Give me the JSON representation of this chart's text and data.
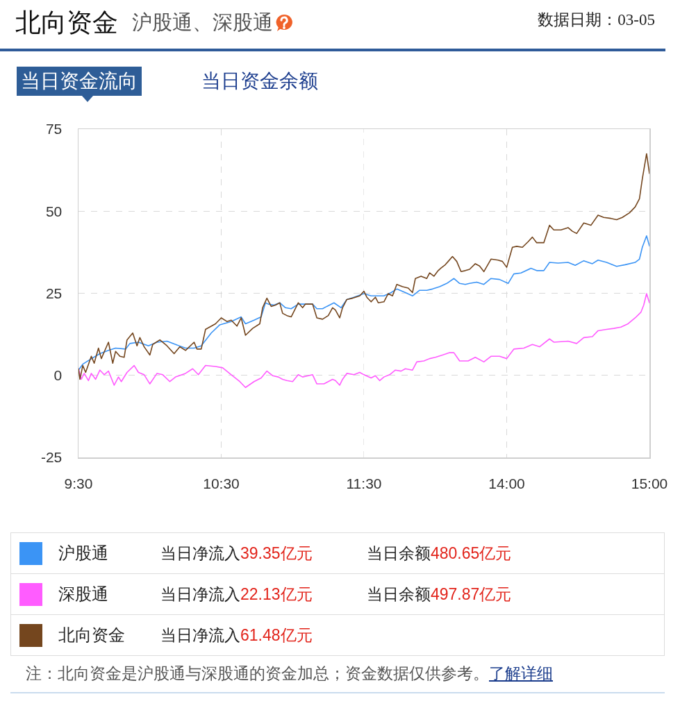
{
  "chart_data": [
    {
      "type": "line",
      "title": "北向资金",
      "subtitle": "沪股通、深股通",
      "annotations": [
        "数据日期：03-05",
        "当日资金流向",
        "当日资金余额",
        "当日净流入39.35亿元",
        "当日余额480.65亿元",
        "当日净流入22.13亿元",
        "当日余额497.87亿元",
        "当日净流入61.48亿元",
        "注：北向资金是沪股通与深股通的资金加总；资金数据仅供参考。",
        "了解详细"
      ],
      "xlim": [
        9.5,
        11.5
      ],
      "xticks": [
        {
          "value": 9.5,
          "label": "9:30"
        },
        {
          "value": 10.5,
          "label": "10:30"
        },
        {
          "value": 11.5,
          "label": "11:30"
        }
      ],
      "ylim": [
        -25,
        75
      ],
      "yticks": [
        -25,
        0,
        25,
        50,
        75
      ],
      "grid": true,
      "legend": "bottom",
      "series": [
        {
          "name": "沪股通",
          "color": "#3b94f5",
          "x": [
            9.5,
            9.53,
            9.58,
            9.65,
            9.71,
            9.76,
            9.83,
            9.86,
            9.92,
            9.99,
            10.05,
            10.12,
            10.18,
            10.25,
            10.31,
            10.36,
            10.43,
            10.49,
            10.57,
            10.64,
            10.67,
            10.73,
            10.78,
            10.81,
            10.83,
            10.87,
            10.91,
            10.95,
            10.99,
            11.04,
            11.09,
            11.14,
            11.17,
            11.21,
            11.24,
            11.29,
            11.34,
            11.38,
            11.43,
            11.5
          ],
          "values": [
            1.6,
            3.4,
            4.8,
            6.6,
            7.6,
            8.3,
            8.0,
            9.7,
            10.1,
            9.0,
            10.1,
            10.4,
            9.4,
            8.3,
            8.3,
            9.0,
            12.9,
            15.4,
            16.4,
            17.8,
            15.7,
            16.8,
            17.8,
            22.1,
            21.7,
            21.4,
            22.1,
            20.6,
            20.3,
            21.7,
            21.7,
            21.7,
            20.3,
            20.3,
            21.0,
            22.1,
            20.6,
            23.1,
            23.8,
            24.9
          ]
        },
        {
          "name": "深股通",
          "color": "#ff5cff",
          "x": [
            9.5,
            9.52,
            9.54,
            9.57,
            9.59,
            9.62,
            9.65,
            9.68,
            9.71,
            9.75,
            9.78,
            9.8,
            9.84,
            9.89,
            9.92,
            9.96,
            10.0,
            10.05,
            10.09,
            10.14,
            10.18,
            10.25,
            10.3,
            10.34,
            10.39,
            10.46,
            10.51,
            10.57,
            10.63,
            10.67,
            10.73,
            10.78,
            10.82,
            10.86,
            10.9,
            10.93,
            10.96,
            11.0,
            11.04,
            11.07,
            11.11,
            11.14,
            11.17,
            11.22,
            11.28,
            11.3,
            11.33,
            11.35,
            11.38,
            11.43,
            11.47,
            11.5
          ],
          "values": [
            2.0,
            -1.2,
            0.6,
            -1.6,
            0.6,
            -1.2,
            1.6,
            0.2,
            1.3,
            -3.0,
            -0.5,
            -1.9,
            0.9,
            3.0,
            0.9,
            0.2,
            -2.6,
            0.6,
            0.2,
            -1.9,
            -0.5,
            0.6,
            2.0,
            0.2,
            3.0,
            2.7,
            2.3,
            0.2,
            -1.9,
            -3.7,
            -1.9,
            -0.8,
            1.3,
            -0.1,
            -0.5,
            -1.2,
            -1.6,
            -1.9,
            0.2,
            -0.5,
            -0.1,
            0.2,
            -2.6,
            -2.6,
            -1.2,
            -1.6,
            -3.0,
            -1.2,
            0.6,
            0.2,
            0.9,
            0.2
          ]
        },
        {
          "name": "北向资金",
          "color": "#74461e",
          "x": [
            9.5,
            9.51,
            9.53,
            9.55,
            9.59,
            9.61,
            9.64,
            9.66,
            9.71,
            9.74,
            9.76,
            9.79,
            9.82,
            9.84,
            9.88,
            9.91,
            9.93,
            9.96,
            10.0,
            10.02,
            10.07,
            10.12,
            10.17,
            10.21,
            10.25,
            10.31,
            10.33,
            10.36,
            10.39,
            10.46,
            10.5,
            10.54,
            10.57,
            10.61,
            10.64,
            10.67,
            10.72,
            10.77,
            10.79,
            10.82,
            10.85,
            10.88,
            10.91,
            10.93,
            10.96,
            10.99,
            11.04,
            11.07,
            11.09,
            11.14,
            11.17,
            11.21,
            11.25,
            11.28,
            11.3,
            11.33,
            11.35,
            11.38,
            11.42,
            11.47,
            11.5
          ],
          "values": [
            2.0,
            -1.2,
            3.0,
            0.9,
            5.8,
            3.7,
            8.3,
            5.1,
            10.1,
            3.7,
            7.3,
            5.8,
            5.5,
            10.8,
            12.9,
            9.0,
            11.5,
            8.7,
            6.2,
            9.4,
            10.8,
            9.0,
            6.6,
            8.7,
            7.6,
            10.1,
            8.0,
            8.0,
            14.0,
            15.7,
            17.5,
            16.4,
            16.8,
            15.0,
            17.5,
            12.2,
            14.3,
            15.7,
            20.6,
            23.5,
            21.0,
            21.4,
            22.1,
            18.9,
            18.2,
            17.8,
            22.1,
            20.6,
            21.7,
            21.7,
            17.5,
            17.1,
            18.2,
            20.6,
            19.9,
            17.5,
            20.6,
            23.1,
            23.5,
            24.2,
            25.6
          ]
        }
      ]
    },
    {
      "type": "line",
      "xlim": [
        13,
        15
      ],
      "xticks": [
        {
          "value": 14,
          "label": "14:00"
        },
        {
          "value": 15,
          "label": "15:00"
        }
      ],
      "ylim": [
        -25,
        75
      ],
      "yticks": [
        -25,
        0,
        25,
        50,
        75
      ],
      "tick_labels": "x",
      "grid": true,
      "series": [
        {
          "color": "#3b94f5",
          "x": [
            13.0,
            13.05,
            13.09,
            13.14,
            13.19,
            13.23,
            13.29,
            13.34,
            13.39,
            13.44,
            13.48,
            13.53,
            13.58,
            13.63,
            13.67,
            13.71,
            13.74,
            13.79,
            13.84,
            13.89,
            13.95,
            14.01,
            14.05,
            14.1,
            14.17,
            14.21,
            14.26,
            14.3,
            14.36,
            14.43,
            14.48,
            14.54,
            14.6,
            14.64,
            14.7,
            14.77,
            14.83,
            14.9,
            14.93,
            14.95,
            14.98,
            15.0
          ],
          "values": [
            24.9,
            24.2,
            24.2,
            24.2,
            25.2,
            26.3,
            25.2,
            24.2,
            25.9,
            25.9,
            26.3,
            27.0,
            28.0,
            29.5,
            28.0,
            27.7,
            28.0,
            28.4,
            27.7,
            29.5,
            29.2,
            28.0,
            30.9,
            31.2,
            32.6,
            31.9,
            31.9,
            34.4,
            34.2,
            34.4,
            33.5,
            34.9,
            34.0,
            35.1,
            34.4,
            33.2,
            33.7,
            34.4,
            35.4,
            39.0,
            42.5,
            39.4
          ]
        },
        {
          "color": "#ff5cff",
          "x": [
            13.0,
            13.05,
            13.08,
            13.11,
            13.14,
            13.18,
            13.22,
            13.26,
            13.29,
            13.34,
            13.37,
            13.42,
            13.46,
            13.5,
            13.55,
            13.6,
            13.63,
            13.67,
            13.73,
            13.78,
            13.84,
            13.89,
            13.95,
            14.0,
            14.05,
            14.12,
            14.18,
            14.23,
            14.3,
            14.33,
            14.43,
            14.49,
            14.54,
            14.6,
            14.64,
            14.7,
            14.75,
            14.8,
            14.85,
            14.9,
            14.94,
            14.96,
            14.98,
            15.0
          ],
          "values": [
            0.2,
            -0.8,
            -0.1,
            -1.6,
            -0.5,
            0.2,
            1.6,
            1.3,
            2.0,
            1.6,
            4.1,
            4.4,
            5.1,
            5.5,
            6.2,
            6.9,
            6.9,
            4.4,
            4.4,
            5.5,
            4.1,
            5.8,
            5.8,
            5.1,
            8.0,
            8.3,
            9.4,
            8.7,
            11.1,
            10.1,
            10.4,
            9.7,
            11.5,
            11.8,
            13.6,
            14.0,
            14.3,
            14.7,
            15.7,
            17.5,
            19.2,
            21.4,
            24.9,
            22.1
          ]
        },
        {
          "color": "#74461e",
          "x": [
            13.0,
            13.02,
            13.05,
            13.08,
            13.1,
            13.14,
            13.17,
            13.2,
            13.23,
            13.27,
            13.31,
            13.34,
            13.36,
            13.4,
            13.44,
            13.46,
            13.49,
            13.52,
            13.54,
            13.57,
            13.59,
            13.62,
            13.65,
            13.68,
            13.71,
            13.74,
            13.78,
            13.81,
            13.84,
            13.89,
            13.94,
            13.97,
            14.0,
            14.04,
            14.07,
            14.11,
            14.15,
            14.18,
            14.21,
            14.26,
            14.3,
            14.33,
            14.38,
            14.43,
            14.46,
            14.49,
            14.54,
            14.59,
            14.64,
            14.68,
            14.73,
            14.77,
            14.81,
            14.86,
            14.9,
            14.93,
            14.95,
            14.98,
            15.0
          ],
          "values": [
            25.6,
            23.8,
            22.4,
            23.8,
            22.1,
            22.4,
            24.9,
            24.2,
            27.7,
            27.0,
            26.6,
            25.2,
            29.5,
            30.2,
            29.5,
            31.2,
            30.2,
            31.9,
            32.7,
            33.7,
            34.7,
            36.2,
            34.7,
            31.6,
            31.9,
            32.3,
            34.0,
            33.3,
            31.6,
            35.4,
            35.1,
            34.7,
            32.9,
            39.0,
            39.3,
            39.0,
            40.7,
            42.1,
            40.4,
            40.4,
            45.7,
            44.3,
            44.3,
            45.0,
            43.9,
            43.2,
            46.4,
            45.7,
            48.8,
            48.1,
            47.8,
            47.4,
            48.1,
            49.5,
            51.3,
            53.8,
            59.8,
            67.5,
            61.5
          ]
        }
      ]
    }
  ]
}
